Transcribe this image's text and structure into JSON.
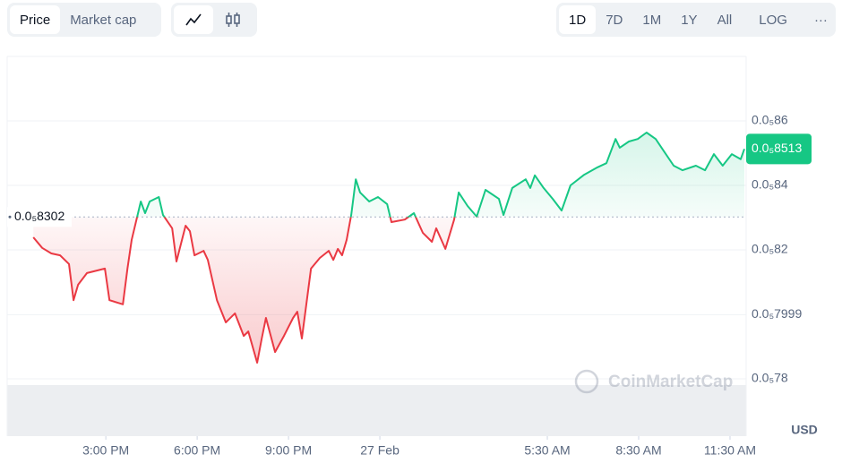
{
  "controls": {
    "tabs": [
      "Price",
      "Market cap"
    ],
    "ranges": [
      "1D",
      "7D",
      "1M",
      "1Y",
      "All"
    ],
    "scale": "LOG",
    "more": "···"
  },
  "watermark": "CoinMarketCap",
  "chart_data": {
    "type": "line",
    "y_unit": "USD",
    "up_color": "#16c784",
    "down_color": "#ea3943",
    "reference": {
      "value": 8.302e-06,
      "label": "0.0₅8302"
    },
    "current_price": {
      "value": 8.513e-06,
      "label": "0.0₅8513"
    },
    "x": [
      -11.38,
      -11.09,
      -10.79,
      -10.5,
      -10.21,
      -10.06,
      -9.91,
      -9.62,
      -9.03,
      -8.88,
      -8.44,
      -8.29,
      -8.15,
      -7.85,
      -7.71,
      -7.56,
      -7.26,
      -7.12,
      -6.82,
      -6.68,
      -6.38,
      -6.24,
      -6.09,
      -5.79,
      -5.65,
      -5.35,
      -5.06,
      -4.76,
      -4.47,
      -4.32,
      -4.03,
      -3.88,
      -3.74,
      -3.44,
      -3.15,
      -2.85,
      -2.71,
      -2.56,
      -2.26,
      -1.97,
      -1.68,
      -1.53,
      -1.38,
      -1.24,
      -1.09,
      -0.94,
      -0.79,
      -0.65,
      -0.35,
      -0.06,
      0.24,
      0.38,
      0.82,
      1.12,
      1.41,
      1.71,
      1.85,
      2.15,
      2.44,
      2.59,
      2.88,
      3.18,
      3.47,
      3.91,
      4.06,
      4.35,
      4.79,
      4.94,
      5.09,
      5.38,
      5.68,
      5.97,
      6.26,
      6.71,
      7.15,
      7.44,
      7.74,
      7.88,
      8.18,
      8.47,
      8.76,
      9.06,
      9.35,
      9.65,
      9.94,
      10.38,
      10.68,
      10.97,
      11.26,
      11.56,
      11.85,
      11.97
    ],
    "values": [
      8.239e-06,
      8.206e-06,
      8.189e-06,
      8.183e-06,
      8.156e-06,
      8.044e-06,
      8.092e-06,
      8.128e-06,
      8.142e-06,
      8.044e-06,
      8.031e-06,
      8.142e-06,
      8.231e-06,
      8.35e-06,
      8.314e-06,
      8.35e-06,
      8.364e-06,
      8.308e-06,
      8.267e-06,
      8.164e-06,
      8.275e-06,
      8.258e-06,
      8.183e-06,
      8.197e-06,
      8.169e-06,
      8.044e-06,
      7.975e-06,
      8.003e-06,
      7.933e-06,
      7.947e-06,
      7.85e-06,
      7.925e-06,
      7.989e-06,
      7.883e-06,
      7.933e-06,
      7.989e-06,
      8.008e-06,
      7.925e-06,
      8.142e-06,
      8.175e-06,
      8.197e-06,
      8.169e-06,
      8.203e-06,
      8.183e-06,
      8.231e-06,
      8.308e-06,
      8.419e-06,
      8.378e-06,
      8.35e-06,
      8.364e-06,
      8.342e-06,
      8.286e-06,
      8.294e-06,
      8.314e-06,
      8.253e-06,
      8.225e-06,
      8.267e-06,
      8.203e-06,
      8.294e-06,
      8.378e-06,
      8.336e-06,
      8.303e-06,
      8.386e-06,
      8.358e-06,
      8.308e-06,
      8.392e-06,
      8.419e-06,
      8.392e-06,
      8.431e-06,
      8.392e-06,
      8.358e-06,
      8.322e-06,
      8.4e-06,
      8.433e-06,
      8.456e-06,
      8.469e-06,
      8.544e-06,
      8.517e-06,
      8.536e-06,
      8.544e-06,
      8.564e-06,
      8.544e-06,
      8.503e-06,
      8.461e-06,
      8.447e-06,
      8.461e-06,
      8.447e-06,
      8.497e-06,
      8.461e-06,
      8.497e-06,
      8.481e-06,
      8.513e-06
    ],
    "xlim": [
      -12.24,
      12.03
    ],
    "xticks": [
      {
        "value": -9,
        "label": "3:00 PM"
      },
      {
        "value": -6,
        "label": "6:00 PM"
      },
      {
        "value": -3,
        "label": "9:00 PM"
      },
      {
        "value": 0,
        "label": "27 Feb"
      },
      {
        "value": 5.5,
        "label": "5:30 AM"
      },
      {
        "value": 8.5,
        "label": "8:30 AM"
      },
      {
        "value": 11.5,
        "label": "11:30 AM"
      }
    ],
    "ylim": [
      7.6e-06,
      8.8e-06
    ],
    "yticks": [
      {
        "value": 7.8e-06,
        "label": "0.0₅78"
      },
      {
        "value": 7.999e-06,
        "label": "0.0₅7999"
      },
      {
        "value": 8.2e-06,
        "label": "0.0₅82"
      },
      {
        "value": 8.4e-06,
        "label": "0.0₅84"
      },
      {
        "value": 8.6e-06,
        "label": "0.0₅86"
      }
    ],
    "grid": true
  }
}
